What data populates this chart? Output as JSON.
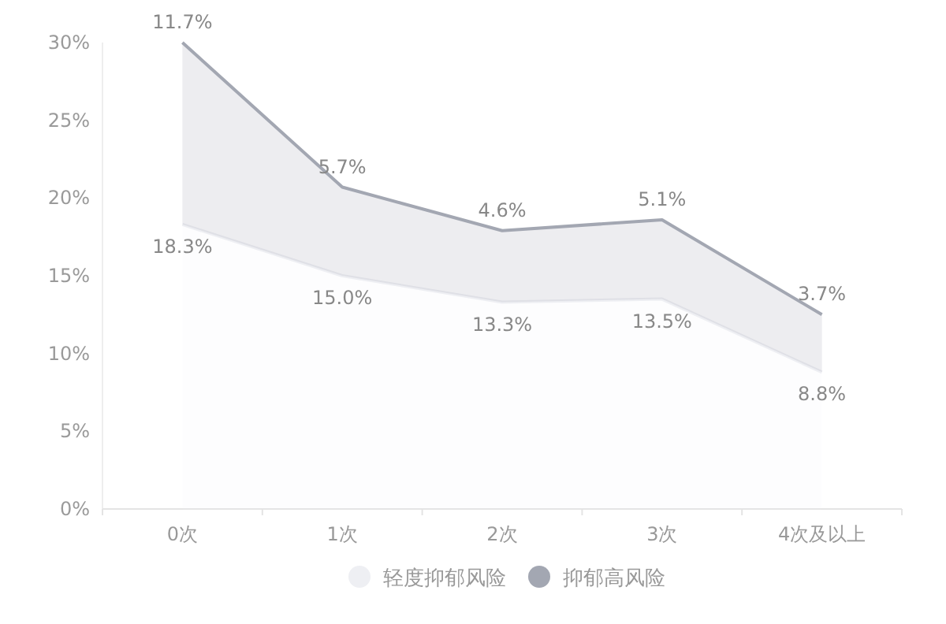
{
  "chart_data": {
    "type": "area",
    "stacked": true,
    "categories": [
      "0次",
      "1次",
      "2次",
      "3次",
      "4次及以上"
    ],
    "series": [
      {
        "name": "轻度抑郁风险",
        "color": "#eeeff3",
        "values": [
          18.3,
          15.0,
          13.3,
          13.5,
          8.8
        ],
        "value_labels": [
          "18.3%",
          "15.0%",
          "13.3%",
          "13.5%",
          "8.8%"
        ]
      },
      {
        "name": "抑郁高风险",
        "color": "#a3a7b2",
        "values": [
          11.7,
          5.7,
          4.6,
          5.1,
          3.7
        ],
        "value_labels": [
          "11.7%",
          "5.7%",
          "4.6%",
          "5.1%",
          "3.7%"
        ]
      }
    ],
    "ylim": [
      0,
      30
    ],
    "yticks": [
      {
        "value": 0,
        "label": "0%"
      },
      {
        "value": 5,
        "label": "5%"
      },
      {
        "value": 10,
        "label": "10%"
      },
      {
        "value": 15,
        "label": "15%"
      },
      {
        "value": 20,
        "label": "20%"
      },
      {
        "value": 25,
        "label": "25%"
      },
      {
        "value": 30,
        "label": "30%"
      }
    ],
    "legend": "bottom"
  }
}
